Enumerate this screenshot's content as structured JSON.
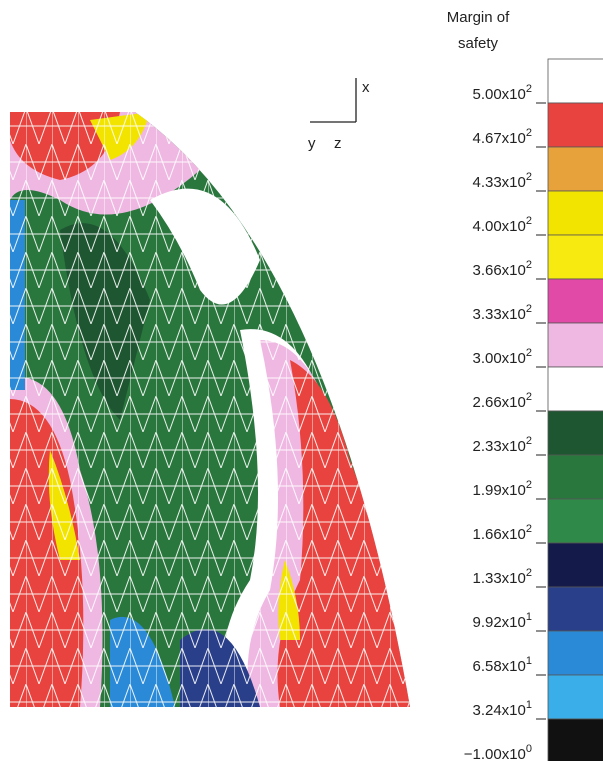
{
  "legend": {
    "title": [
      "Margin of",
      "safety"
    ],
    "levels": [
      {
        "text": "5.00x10",
        "exp": "2"
      },
      {
        "text": "4.67x10",
        "exp": "2"
      },
      {
        "text": "4.33x10",
        "exp": "2"
      },
      {
        "text": "4.00x10",
        "exp": "2"
      },
      {
        "text": "3.66x10",
        "exp": "2"
      },
      {
        "text": "3.33x10",
        "exp": "2"
      },
      {
        "text": "3.00x10",
        "exp": "2"
      },
      {
        "text": "2.66x10",
        "exp": "2"
      },
      {
        "text": "2.33x10",
        "exp": "2"
      },
      {
        "text": "1.99x10",
        "exp": "2"
      },
      {
        "text": "1.66x10",
        "exp": "2"
      },
      {
        "text": "1.33x10",
        "exp": "2"
      },
      {
        "text": "9.92x10",
        "exp": "1"
      },
      {
        "text": "6.58x10",
        "exp": "1"
      },
      {
        "text": "3.24x10",
        "exp": "1"
      },
      {
        "text": "−1.00x10",
        "exp": "0"
      }
    ],
    "colors": [
      "#ffffff",
      "#e8433e",
      "#e8a23c",
      "#f3e400",
      "#f6ea10",
      "#e24aa8",
      "#efb8e2",
      "#ffffff",
      "#1f5632",
      "#2a773e",
      "#2f8a4a",
      "#141a4a",
      "#2a3f8a",
      "#2a8ad8",
      "#3aaee8",
      "#111111"
    ]
  },
  "triad": {
    "x": "x",
    "y": "y",
    "z": "z"
  }
}
